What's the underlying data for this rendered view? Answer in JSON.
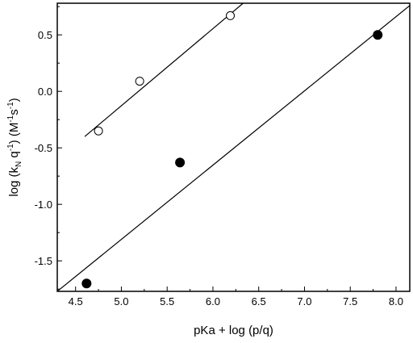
{
  "chart_data": {
    "type": "scatter",
    "title": "",
    "xlabel": "pKa + log (p/q)",
    "ylabel": {
      "prefix": "log (k",
      "sub1": "N",
      "mid": " q",
      "sup1": "-1",
      "mid2": ") (M",
      "sup2": "-1",
      "mid3": "s",
      "sup3": "-1",
      "suffix": ")"
    },
    "xlim": [
      4.3,
      8.15
    ],
    "ylim": [
      -1.77,
      0.78
    ],
    "xticks": [
      4.5,
      5.0,
      5.5,
      6.0,
      6.5,
      7.0,
      7.5,
      8.0
    ],
    "xtick_labels": [
      "4.5",
      "5.0",
      "5.5",
      "6.0",
      "6.5",
      "7.0",
      "7.5",
      "8.0"
    ],
    "yticks": [
      -1.5,
      -1.0,
      -0.5,
      0.0,
      0.5
    ],
    "ytick_labels": [
      "-1.5",
      "-1.0",
      "-0.5",
      "0.0",
      "0.5"
    ],
    "grid": false,
    "legend": "none",
    "series": [
      {
        "marker": "open-circle",
        "points": [
          [
            4.75,
            -0.35
          ],
          [
            5.2,
            0.09
          ],
          [
            6.19,
            0.67
          ]
        ],
        "fit_line": [
          [
            4.6,
            -0.4
          ],
          [
            6.33,
            0.78
          ]
        ]
      },
      {
        "marker": "filled-circle",
        "points": [
          [
            4.62,
            -1.7
          ],
          [
            5.64,
            -0.63
          ],
          [
            7.8,
            0.5
          ]
        ],
        "fit_line": [
          [
            4.3,
            -1.77
          ],
          [
            8.15,
            0.76
          ]
        ]
      }
    ]
  }
}
